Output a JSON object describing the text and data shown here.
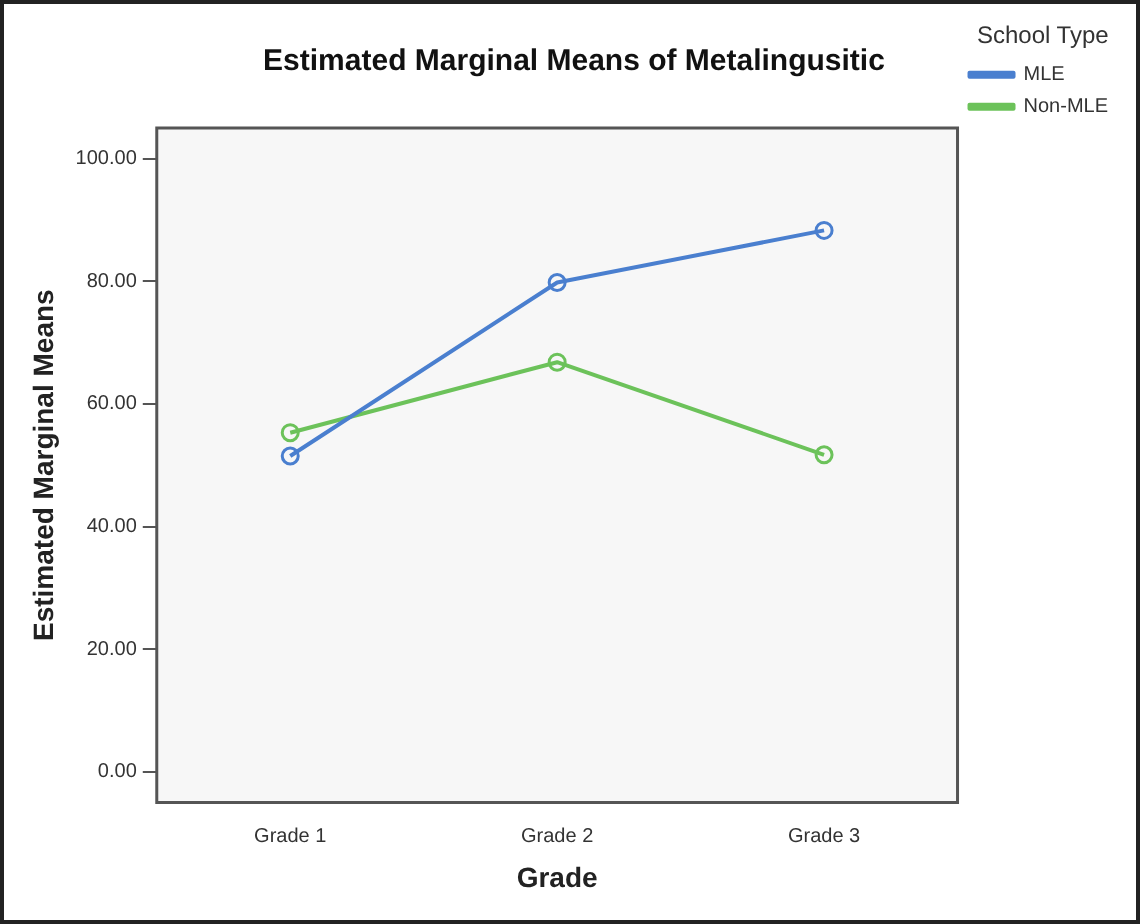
{
  "chart_data": {
    "type": "line",
    "title": "Estimated Marginal Means of Metalingusitic",
    "xlabel": "Grade",
    "ylabel": "Estimated Marginal Means",
    "legend_title": "School Type",
    "categories": [
      "Grade 1",
      "Grade 2",
      "Grade 3"
    ],
    "series": [
      {
        "name": "MLE",
        "color": "#4a7fcf",
        "values": [
          51.5,
          79.8,
          88.3
        ]
      },
      {
        "name": "Non-MLE",
        "color": "#6cc25a",
        "values": [
          55.3,
          66.8,
          51.7
        ]
      }
    ],
    "ylim": [
      -5,
      105
    ],
    "yticks": [
      {
        "value": 0,
        "label": "0.00"
      },
      {
        "value": 20,
        "label": "20.00"
      },
      {
        "value": 40,
        "label": "40.00"
      },
      {
        "value": 60,
        "label": "60.00"
      },
      {
        "value": 80,
        "label": "80.00"
      },
      {
        "value": 100,
        "label": "100.00"
      }
    ],
    "grid": false,
    "legend": "top right",
    "marker": "circle",
    "line_style": "solid"
  }
}
